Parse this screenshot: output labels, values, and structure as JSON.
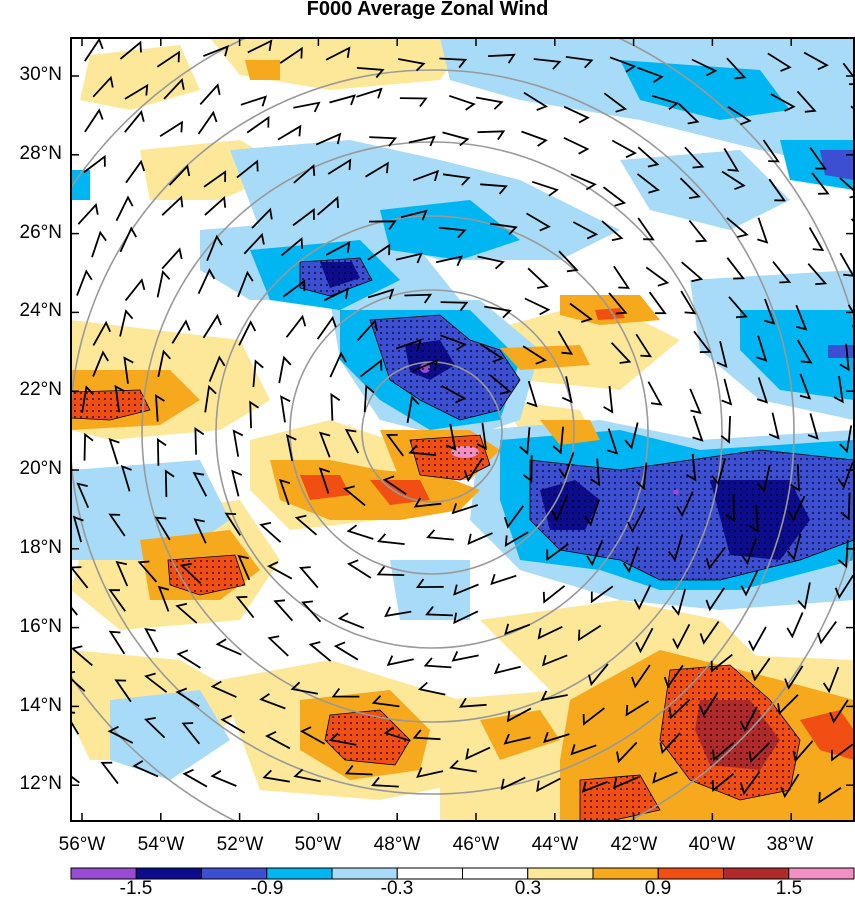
{
  "title": "F000 Average Zonal Wind",
  "palette": {
    "c_m18": "#9a4bd6",
    "c_m15": "#0c0c8e",
    "c_m12": "#3c4fd2",
    "c_m09": "#00b6f2",
    "c_m06": "#a7dbf7",
    "c_m03": "#ffffff",
    "c_p03": "#fde89a",
    "c_p06": "#f6a91d",
    "c_p09": "#f04e12",
    "c_p12": "#b02a2c",
    "c_p15": "#f38fc3",
    "frame": "#000000",
    "rings": "#999999"
  },
  "map": {
    "x_ticks": [
      "56°W",
      "54°W",
      "52°W",
      "50°W",
      "48°W",
      "46°W",
      "44°W",
      "42°W",
      "40°W",
      "38°W"
    ],
    "y_ticks": [
      "30°N",
      "28°N",
      "26°N",
      "24°N",
      "22°N",
      "20°N",
      "18°N",
      "16°N",
      "14°N",
      "12°N"
    ]
  },
  "colorbar": {
    "labels": [
      "-1.5",
      "-0.9",
      "-0.3",
      "0.3",
      "0.9",
      "1.5"
    ],
    "colors": [
      "#9a4bd6",
      "#0c0c8e",
      "#3c4fd2",
      "#00b6f2",
      "#a7dbf7",
      "#ffffff",
      "#ffffff",
      "#fde89a",
      "#f6a91d",
      "#f04e12",
      "#b02a2c",
      "#f38fc3"
    ]
  }
}
